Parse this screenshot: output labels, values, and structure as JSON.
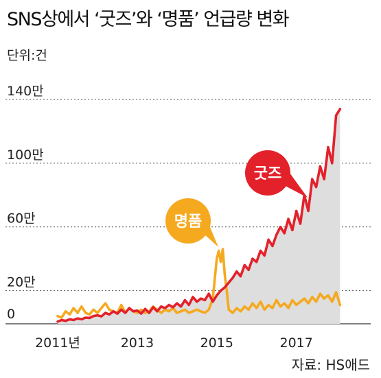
{
  "title": "SNS상에서 ‘굿즈’와 ‘명품’ 언급량 변화",
  "unit_label": "단위:건",
  "source": "자료: HS애드",
  "colors": {
    "goods": "#e3212b",
    "luxury": "#f5a91f",
    "area": "#dedede",
    "text": "#222222",
    "grid": "#555555"
  },
  "chart_data": {
    "type": "line",
    "title": "SNS상에서 ‘굿즈’와 ‘명품’ 언급량 변화",
    "ylabel": "단위:건",
    "ylim": [
      0,
      1400000
    ],
    "xlim": [
      2011,
      2018.3
    ],
    "grid": true,
    "y_ticks": [
      {
        "value": 0,
        "label": "0"
      },
      {
        "value": 200000,
        "label": "20만"
      },
      {
        "value": 600000,
        "label": "60만"
      },
      {
        "value": 1000000,
        "label": "100만"
      },
      {
        "value": 1400000,
        "label": "140만"
      }
    ],
    "x_ticks": [
      {
        "value": 2011,
        "label": "2011년"
      },
      {
        "value": 2013,
        "label": "2013"
      },
      {
        "value": 2015,
        "label": "2015"
      },
      {
        "value": 2017,
        "label": "2017"
      }
    ],
    "series": [
      {
        "name": "굿즈",
        "color": "#e3212b",
        "filled": true,
        "x": [
          2011.0,
          2011.1,
          2011.2,
          2011.3,
          2011.4,
          2011.5,
          2011.6,
          2011.7,
          2011.8,
          2011.9,
          2012.0,
          2012.1,
          2012.2,
          2012.3,
          2012.4,
          2012.5,
          2012.6,
          2012.7,
          2012.8,
          2012.9,
          2013.0,
          2013.1,
          2013.2,
          2013.3,
          2013.4,
          2013.5,
          2013.6,
          2013.7,
          2013.8,
          2013.9,
          2014.0,
          2014.1,
          2014.2,
          2014.3,
          2014.4,
          2014.5,
          2014.6,
          2014.7,
          2014.8,
          2014.9,
          2015.0,
          2015.1,
          2015.2,
          2015.3,
          2015.4,
          2015.5,
          2015.6,
          2015.7,
          2015.8,
          2015.9,
          2016.0,
          2016.1,
          2016.2,
          2016.3,
          2016.4,
          2016.5,
          2016.6,
          2016.7,
          2016.8,
          2016.9,
          2017.0,
          2017.1,
          2017.2,
          2017.3,
          2017.4,
          2017.5,
          2017.6,
          2017.7,
          2017.8,
          2017.9,
          2018.0,
          2018.1
        ],
        "values": [
          5000,
          15000,
          10000,
          20000,
          15000,
          25000,
          20000,
          30000,
          28000,
          40000,
          45000,
          38000,
          60000,
          50000,
          70000,
          55000,
          80000,
          60000,
          90000,
          70000,
          75000,
          55000,
          85000,
          60000,
          95000,
          70000,
          100000,
          90000,
          110000,
          95000,
          120000,
          100000,
          140000,
          110000,
          160000,
          130000,
          150000,
          140000,
          180000,
          130000,
          170000,
          200000,
          220000,
          250000,
          280000,
          320000,
          290000,
          360000,
          330000,
          400000,
          380000,
          450000,
          420000,
          520000,
          480000,
          550000,
          600000,
          560000,
          650000,
          580000,
          700000,
          620000,
          800000,
          700000,
          900000,
          850000,
          980000,
          900000,
          1100000,
          1000000,
          1300000,
          1340000
        ]
      },
      {
        "name": "명품",
        "color": "#f5a91f",
        "filled": false,
        "x": [
          2011.0,
          2011.1,
          2011.2,
          2011.3,
          2011.4,
          2011.5,
          2011.6,
          2011.7,
          2011.8,
          2011.9,
          2012.0,
          2012.1,
          2012.2,
          2012.3,
          2012.4,
          2012.5,
          2012.6,
          2012.7,
          2012.8,
          2012.9,
          2013.0,
          2013.1,
          2013.2,
          2013.3,
          2013.4,
          2013.5,
          2013.6,
          2013.7,
          2013.8,
          2013.9,
          2014.0,
          2014.1,
          2014.2,
          2014.3,
          2014.4,
          2014.5,
          2014.6,
          2014.7,
          2014.8,
          2014.9,
          2015.0,
          2015.05,
          2015.1,
          2015.15,
          2015.2,
          2015.25,
          2015.3,
          2015.4,
          2015.5,
          2015.6,
          2015.7,
          2015.8,
          2015.9,
          2016.0,
          2016.1,
          2016.2,
          2016.3,
          2016.4,
          2016.5,
          2016.6,
          2016.7,
          2016.8,
          2016.9,
          2017.0,
          2017.1,
          2017.2,
          2017.3,
          2017.4,
          2017.5,
          2017.6,
          2017.7,
          2017.8,
          2017.9,
          2018.0,
          2018.1
        ],
        "values": [
          40000,
          30000,
          70000,
          50000,
          90000,
          60000,
          100000,
          60000,
          50000,
          80000,
          60000,
          90000,
          120000,
          80000,
          70000,
          60000,
          110000,
          60000,
          90000,
          70000,
          60000,
          80000,
          60000,
          70000,
          100000,
          80000,
          60000,
          80000,
          70000,
          90000,
          60000,
          70000,
          80000,
          60000,
          70000,
          80000,
          70000,
          60000,
          80000,
          150000,
          400000,
          450000,
          380000,
          460000,
          300000,
          200000,
          80000,
          60000,
          90000,
          70000,
          100000,
          80000,
          120000,
          90000,
          130000,
          80000,
          110000,
          90000,
          140000,
          100000,
          120000,
          90000,
          140000,
          110000,
          130000,
          150000,
          120000,
          160000,
          130000,
          180000,
          150000,
          170000,
          130000,
          190000,
          110000
        ]
      }
    ],
    "annotations": [
      {
        "series": "굿즈",
        "text": "굿즈"
      },
      {
        "series": "명품",
        "text": "명품"
      }
    ]
  }
}
